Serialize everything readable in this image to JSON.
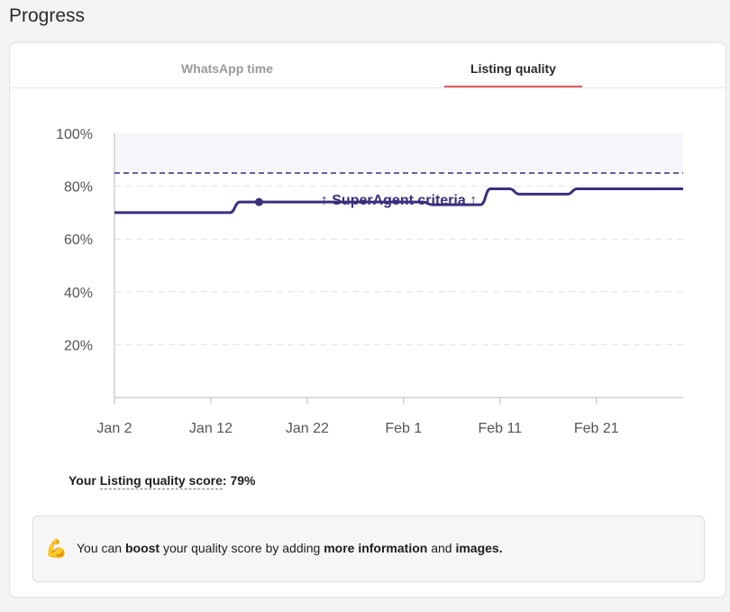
{
  "page": {
    "title": "Progress"
  },
  "tabs": [
    {
      "label": "WhatsApp time",
      "active": false
    },
    {
      "label": "Listing quality",
      "active": true
    }
  ],
  "chart_data": {
    "type": "line",
    "x_tick_labels": [
      "Jan 2",
      "Jan 12",
      "Jan 22",
      "Feb 1",
      "Feb 11",
      "Feb 21"
    ],
    "y_tick_labels": [
      "20%",
      "40%",
      "60%",
      "80%",
      "100%"
    ],
    "xlim": [
      "Jan 2",
      "Mar 2"
    ],
    "ylim": [
      0,
      100
    ],
    "grid": {
      "horizontal": true,
      "style": "dashed"
    },
    "series": [
      {
        "x": [
          "Jan 2",
          "Jan 14",
          "Jan 15",
          "Jan 16",
          "Jan 17",
          "Jan 18",
          "Jan 19",
          "Jan 20",
          "Jan 21",
          "Jan 22",
          "Jan 23",
          "Jan 24",
          "Jan 25",
          "Jan 26",
          "Jan 27",
          "Jan 28",
          "Jan 29",
          "Jan 30",
          "Jan 31",
          "Feb 1",
          "Feb 2",
          "Feb 3",
          "Feb 4",
          "Feb 5",
          "Feb 6",
          "Feb 7",
          "Feb 8",
          "Feb 9",
          "Feb 10",
          "Feb 11",
          "Feb 12",
          "Feb 13",
          "Feb 14",
          "Feb 15",
          "Feb 16",
          "Feb 17",
          "Feb 18",
          "Feb 19",
          "Mar 2"
        ],
        "values": [
          70,
          70,
          74,
          74,
          74,
          74,
          74,
          74,
          74,
          74,
          74,
          74,
          74,
          74,
          74,
          74,
          74,
          74,
          74,
          74,
          74,
          74,
          73,
          73,
          73,
          73,
          73,
          73,
          79,
          79,
          79,
          77,
          77,
          77,
          77,
          77,
          77,
          79,
          79
        ],
        "color": "#3b2f7d"
      }
    ],
    "marker": {
      "x": "Jan 17",
      "y": 74
    },
    "threshold": {
      "value": 85,
      "label": "↑ SuperAgent criteria ↑",
      "color": "#3b2f7d"
    },
    "band": {
      "from": 85,
      "to": 100,
      "color": "#f6f6fa"
    }
  },
  "score": {
    "prefix": "Your ",
    "metric": "Listing quality score",
    "suffix": ": ",
    "value": "79%"
  },
  "tip": {
    "icon": "flexed-biceps-icon",
    "parts": [
      "You can ",
      "boost",
      " your quality score by adding ",
      "more information",
      " and ",
      "images."
    ]
  }
}
